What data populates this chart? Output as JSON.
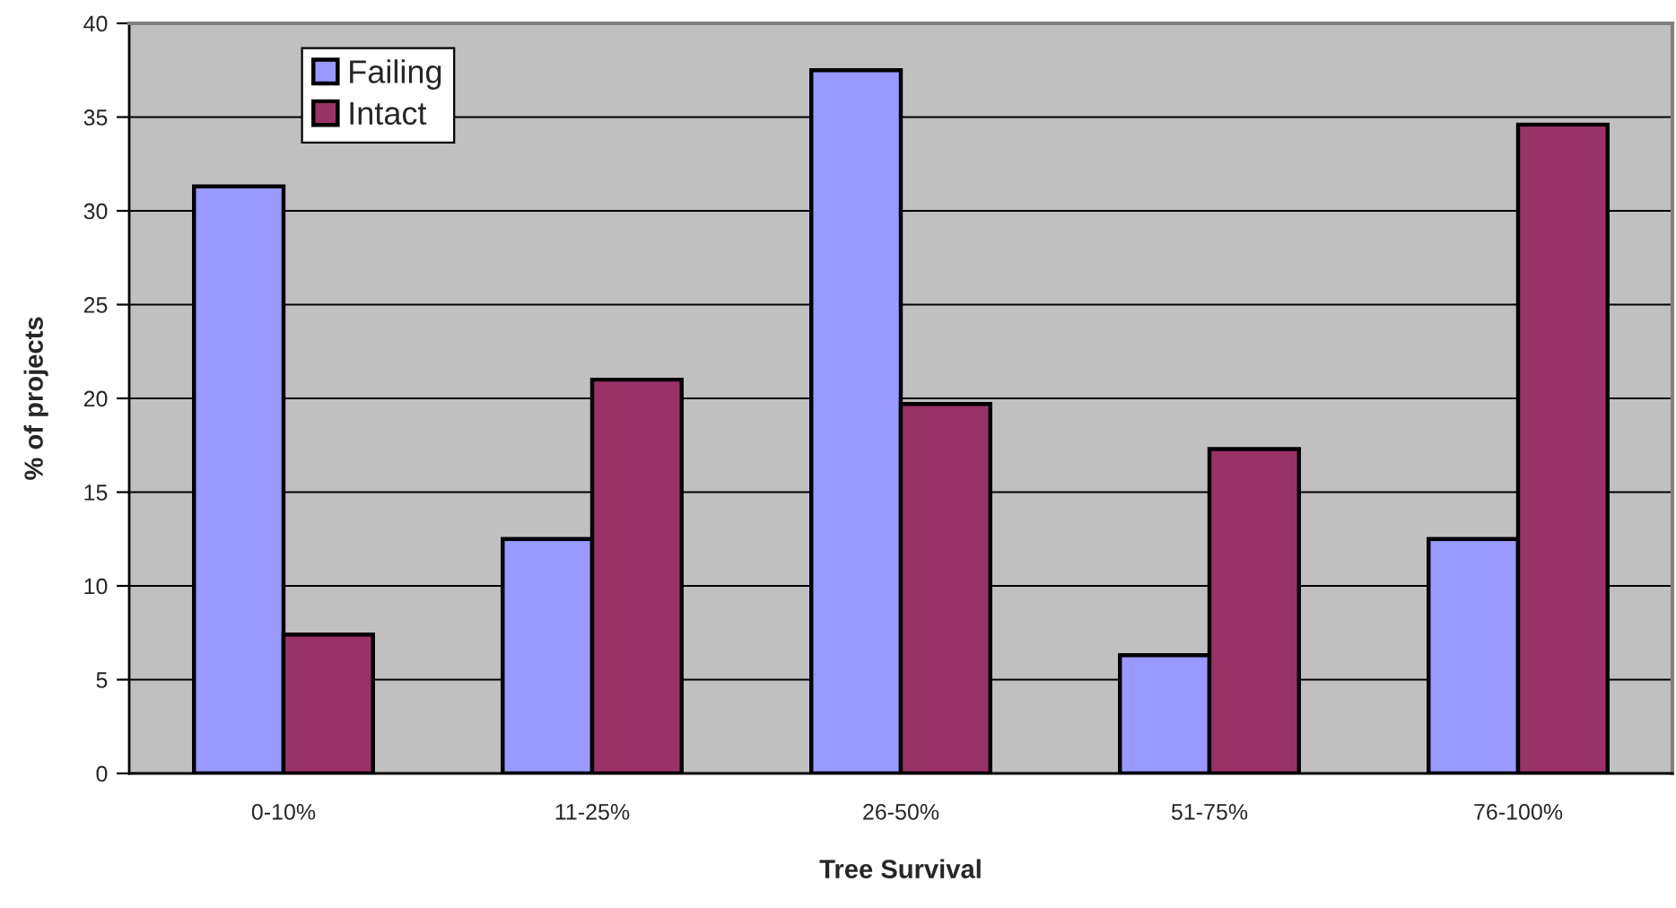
{
  "chart_data": {
    "type": "bar",
    "xlabel": "Tree Survival",
    "ylabel": "% of projects",
    "categories": [
      "0-10%",
      "11-25%",
      "26-50%",
      "51-75%",
      "76-100%"
    ],
    "series": [
      {
        "name": "Failing",
        "color": "#9999ff",
        "values": [
          31.3,
          12.5,
          37.5,
          6.3,
          12.5
        ]
      },
      {
        "name": "Intact",
        "color": "#993366",
        "values": [
          7.4,
          21.0,
          19.7,
          17.3,
          34.6
        ]
      }
    ],
    "ylim": [
      0,
      40
    ],
    "yticks": [
      0,
      5,
      10,
      15,
      20,
      25,
      30,
      35,
      40
    ],
    "grid": "y",
    "legend": "top left"
  }
}
